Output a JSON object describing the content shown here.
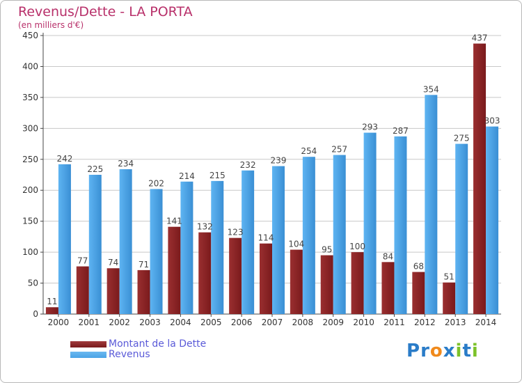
{
  "title": "Revenus/Dette - LA PORTA",
  "subtitle": "(en milliers d'€)",
  "colors": {
    "dette": "#7a1a1c",
    "revenus": "#4aa3e6",
    "grid": "#c8c8c8",
    "axis": "#444444",
    "title": "#b8306a"
  },
  "chart_data": {
    "type": "bar",
    "categories": [
      "2000",
      "2001",
      "2002",
      "2003",
      "2004",
      "2005",
      "2006",
      "2007",
      "2008",
      "2009",
      "2010",
      "2011",
      "2012",
      "2013",
      "2014"
    ],
    "series": [
      {
        "name": "Montant de la Dette",
        "values": [
          11,
          77,
          74,
          71,
          141,
          132,
          123,
          114,
          104,
          95,
          100,
          84,
          68,
          51,
          437
        ]
      },
      {
        "name": "Revenus",
        "values": [
          242,
          225,
          234,
          202,
          214,
          215,
          232,
          239,
          254,
          257,
          293,
          287,
          354,
          275,
          303
        ]
      }
    ],
    "ylim": [
      0,
      450
    ],
    "yticks": [
      0,
      50,
      100,
      150,
      200,
      250,
      300,
      350,
      400,
      450
    ],
    "title": "Revenus/Dette - LA PORTA",
    "ylabel": "(en milliers d'€)",
    "xlabel": "",
    "grid": true
  },
  "legend": {
    "dette_label": "Montant de la Dette",
    "revenus_label": "Revenus"
  },
  "logo": {
    "text": "Proxiti",
    "letters": [
      "P",
      "r",
      "o",
      "x",
      "i",
      "t",
      "i"
    ],
    "letter_colors": [
      "#2a7cc8",
      "#2a7cc8",
      "#f08a1c",
      "#2a7cc8",
      "#7cc22a",
      "#2a7cc8",
      "#7cc22a"
    ]
  }
}
